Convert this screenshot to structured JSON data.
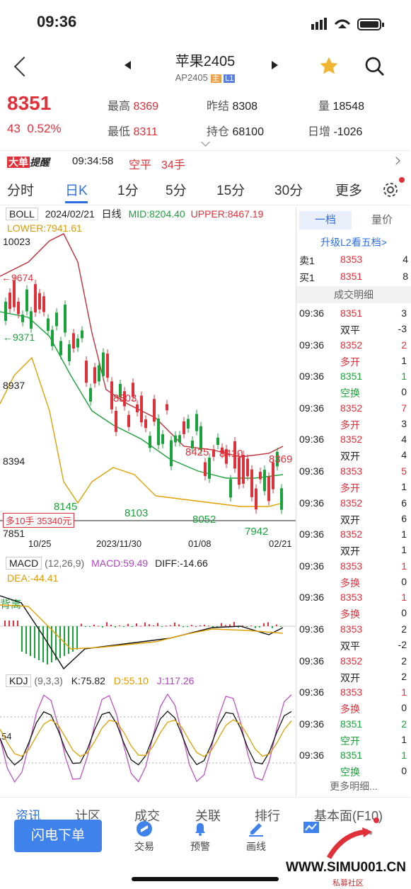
{
  "status_bar": {
    "time": "09:36"
  },
  "header": {
    "title": "苹果2405",
    "code": "AP2405",
    "badge_main": "主",
    "badge_l1": "L1"
  },
  "quote": {
    "last": "8351",
    "change": "43",
    "change_pct": "0.52%",
    "high_label": "最高",
    "high": "8369",
    "low_label": "最低",
    "low": "8311",
    "prev_label": "昨结",
    "prev": "8308",
    "oi_label": "持仓",
    "oi": "68100",
    "vol_label": "量",
    "vol": "18548",
    "daily_label": "日增",
    "daily": "-1026"
  },
  "alert": {
    "tag": "大单",
    "label": "提醒",
    "time": "09:34:58",
    "action": "空平",
    "qty": "34手"
  },
  "tabs": [
    "分时",
    "日K",
    "1分",
    "5分",
    "15分",
    "30分",
    "更多"
  ],
  "chart_header": {
    "indicator": "BOLL",
    "date": "2024/02/21",
    "period": "日线",
    "mid": "MID:8204.40",
    "upper": "UPPER:8467.19",
    "lower": "LOWER:7941.61"
  },
  "chart_data": {
    "type": "candlestick",
    "y_ticks": [
      "10023",
      "8937",
      "8394",
      "7851"
    ],
    "x_ticks": [
      "10/25",
      "2023/11/30",
      "01/08",
      "02/21"
    ],
    "annotations": [
      "9674",
      "9371",
      "8803",
      "8425",
      "8410",
      "8369",
      "8145",
      "8103",
      "8052",
      "7942"
    ],
    "position_label": "多10手 35340元",
    "macd": {
      "indicator": "MACD",
      "params": "(12,26,9)",
      "macd": "MACD:59.49",
      "diff": "DIFF:-14.66",
      "dea": "DEA:-44.41",
      "divergence": "背离"
    },
    "kdj": {
      "indicator": "KDJ",
      "params": "(9,3,3)",
      "k": "K:75.82",
      "d": "D:55.10",
      "j": "J:117.26",
      "tick": "54"
    }
  },
  "orderbook": {
    "tab_active": "一档",
    "tab_other": "量价",
    "upgrade": "升级L2看五档>",
    "ask_label": "卖1",
    "ask_price": "8353",
    "ask_vol": "4",
    "bid_label": "买1",
    "bid_price": "8351",
    "bid_vol": "8",
    "trades_title": "成交明细",
    "more": "更多明细..."
  },
  "trades": [
    {
      "time": "09:36",
      "price": "8351",
      "vol": "3",
      "type": "双平",
      "oi": "-3"
    },
    {
      "time": "09:36",
      "price": "8352",
      "vol": "2",
      "type": "多开",
      "oi": "1"
    },
    {
      "time": "09:36",
      "price": "8351",
      "vol": "1",
      "type": "空换",
      "oi": "0"
    },
    {
      "time": "09:36",
      "price": "8352",
      "vol": "7",
      "type": "多开",
      "oi": "3"
    },
    {
      "time": "09:36",
      "price": "8352",
      "vol": "4",
      "type": "双开",
      "oi": "4"
    },
    {
      "time": "09:36",
      "price": "8353",
      "vol": "5",
      "type": "多开",
      "oi": "1"
    },
    {
      "time": "09:36",
      "price": "8352",
      "vol": "6",
      "type": "双开",
      "oi": "6"
    },
    {
      "time": "09:36",
      "price": "8352",
      "vol": "1",
      "type": "双开",
      "oi": "1"
    },
    {
      "time": "09:36",
      "price": "8353",
      "vol": "1",
      "type": "多换",
      "oi": "0"
    },
    {
      "time": "09:36",
      "price": "8353",
      "vol": "1",
      "type": "多换",
      "oi": "0"
    },
    {
      "time": "09:36",
      "price": "8353",
      "vol": "2",
      "type": "双平",
      "oi": "-2"
    },
    {
      "time": "09:36",
      "price": "8352",
      "vol": "2",
      "type": "双开",
      "oi": "2"
    },
    {
      "time": "09:36",
      "price": "8353",
      "vol": "1",
      "type": "多换",
      "oi": "0"
    },
    {
      "time": "09:36",
      "price": "8351",
      "vol": "2",
      "type": "空开",
      "oi": "1"
    },
    {
      "time": "09:36",
      "price": "8351",
      "vol": "1",
      "type": "空换",
      "oi": "0"
    }
  ],
  "bottom": {
    "partial_tabs": [
      "资讯",
      "计区",
      "成交",
      "关联",
      "排行",
      "基本面(F10)"
    ],
    "flash": "闪电下单",
    "trade": "交易",
    "alert": "预警",
    "draw": "画线",
    "watermark": "WWW.SIMU001.CN",
    "watermark_sub": "私募社区"
  }
}
